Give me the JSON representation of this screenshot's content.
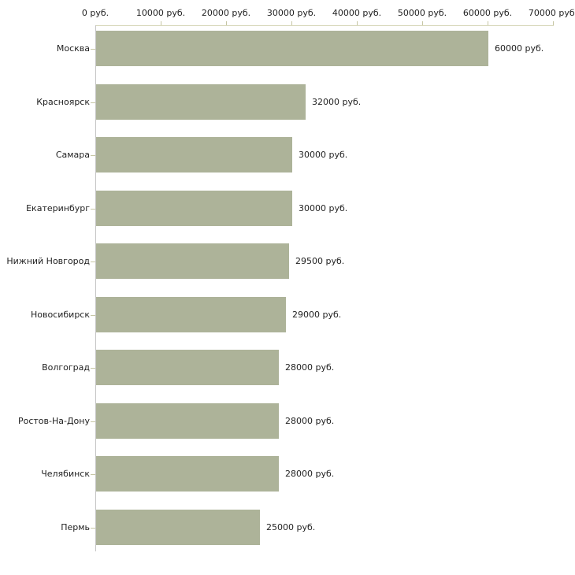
{
  "chart_data": {
    "type": "bar",
    "orientation": "horizontal",
    "title": "",
    "xlabel": "",
    "ylabel": "",
    "unit": "руб.",
    "xlim": [
      0,
      70000
    ],
    "grid": false,
    "legend": null,
    "categories": [
      "Москва",
      "Красноярск",
      "Самара",
      "Екатеринбург",
      "Нижний Новгород",
      "Новосибирск",
      "Волгоград",
      "Ростов-На-Дону",
      "Челябинск",
      "Пермь"
    ],
    "values": [
      60000,
      32000,
      30000,
      30000,
      29500,
      29000,
      28000,
      28000,
      28000,
      25000
    ],
    "value_labels": [
      "60000 руб.",
      "32000 руб.",
      "30000 руб.",
      "30000 руб.",
      "29500 руб.",
      "29000 руб.",
      "28000 руб.",
      "28000 руб.",
      "28000 руб.",
      "25000 руб."
    ],
    "x_ticks": {
      "values": [
        0,
        10000,
        20000,
        30000,
        40000,
        50000,
        60000,
        70000
      ],
      "labels": [
        "0 руб.",
        "10000 руб.",
        "20000 руб.",
        "30000 руб.",
        "40000 руб.",
        "50000 руб.",
        "60000 руб.",
        "70000 руб."
      ]
    },
    "colors": {
      "bar_fill": "#adb399",
      "top_axis_line": "#d9d9bd",
      "tick_mark": "#c6c6a4",
      "y_axis_line": "#c4c4c4",
      "label_text": "#222222",
      "background": "#ffffff"
    }
  }
}
